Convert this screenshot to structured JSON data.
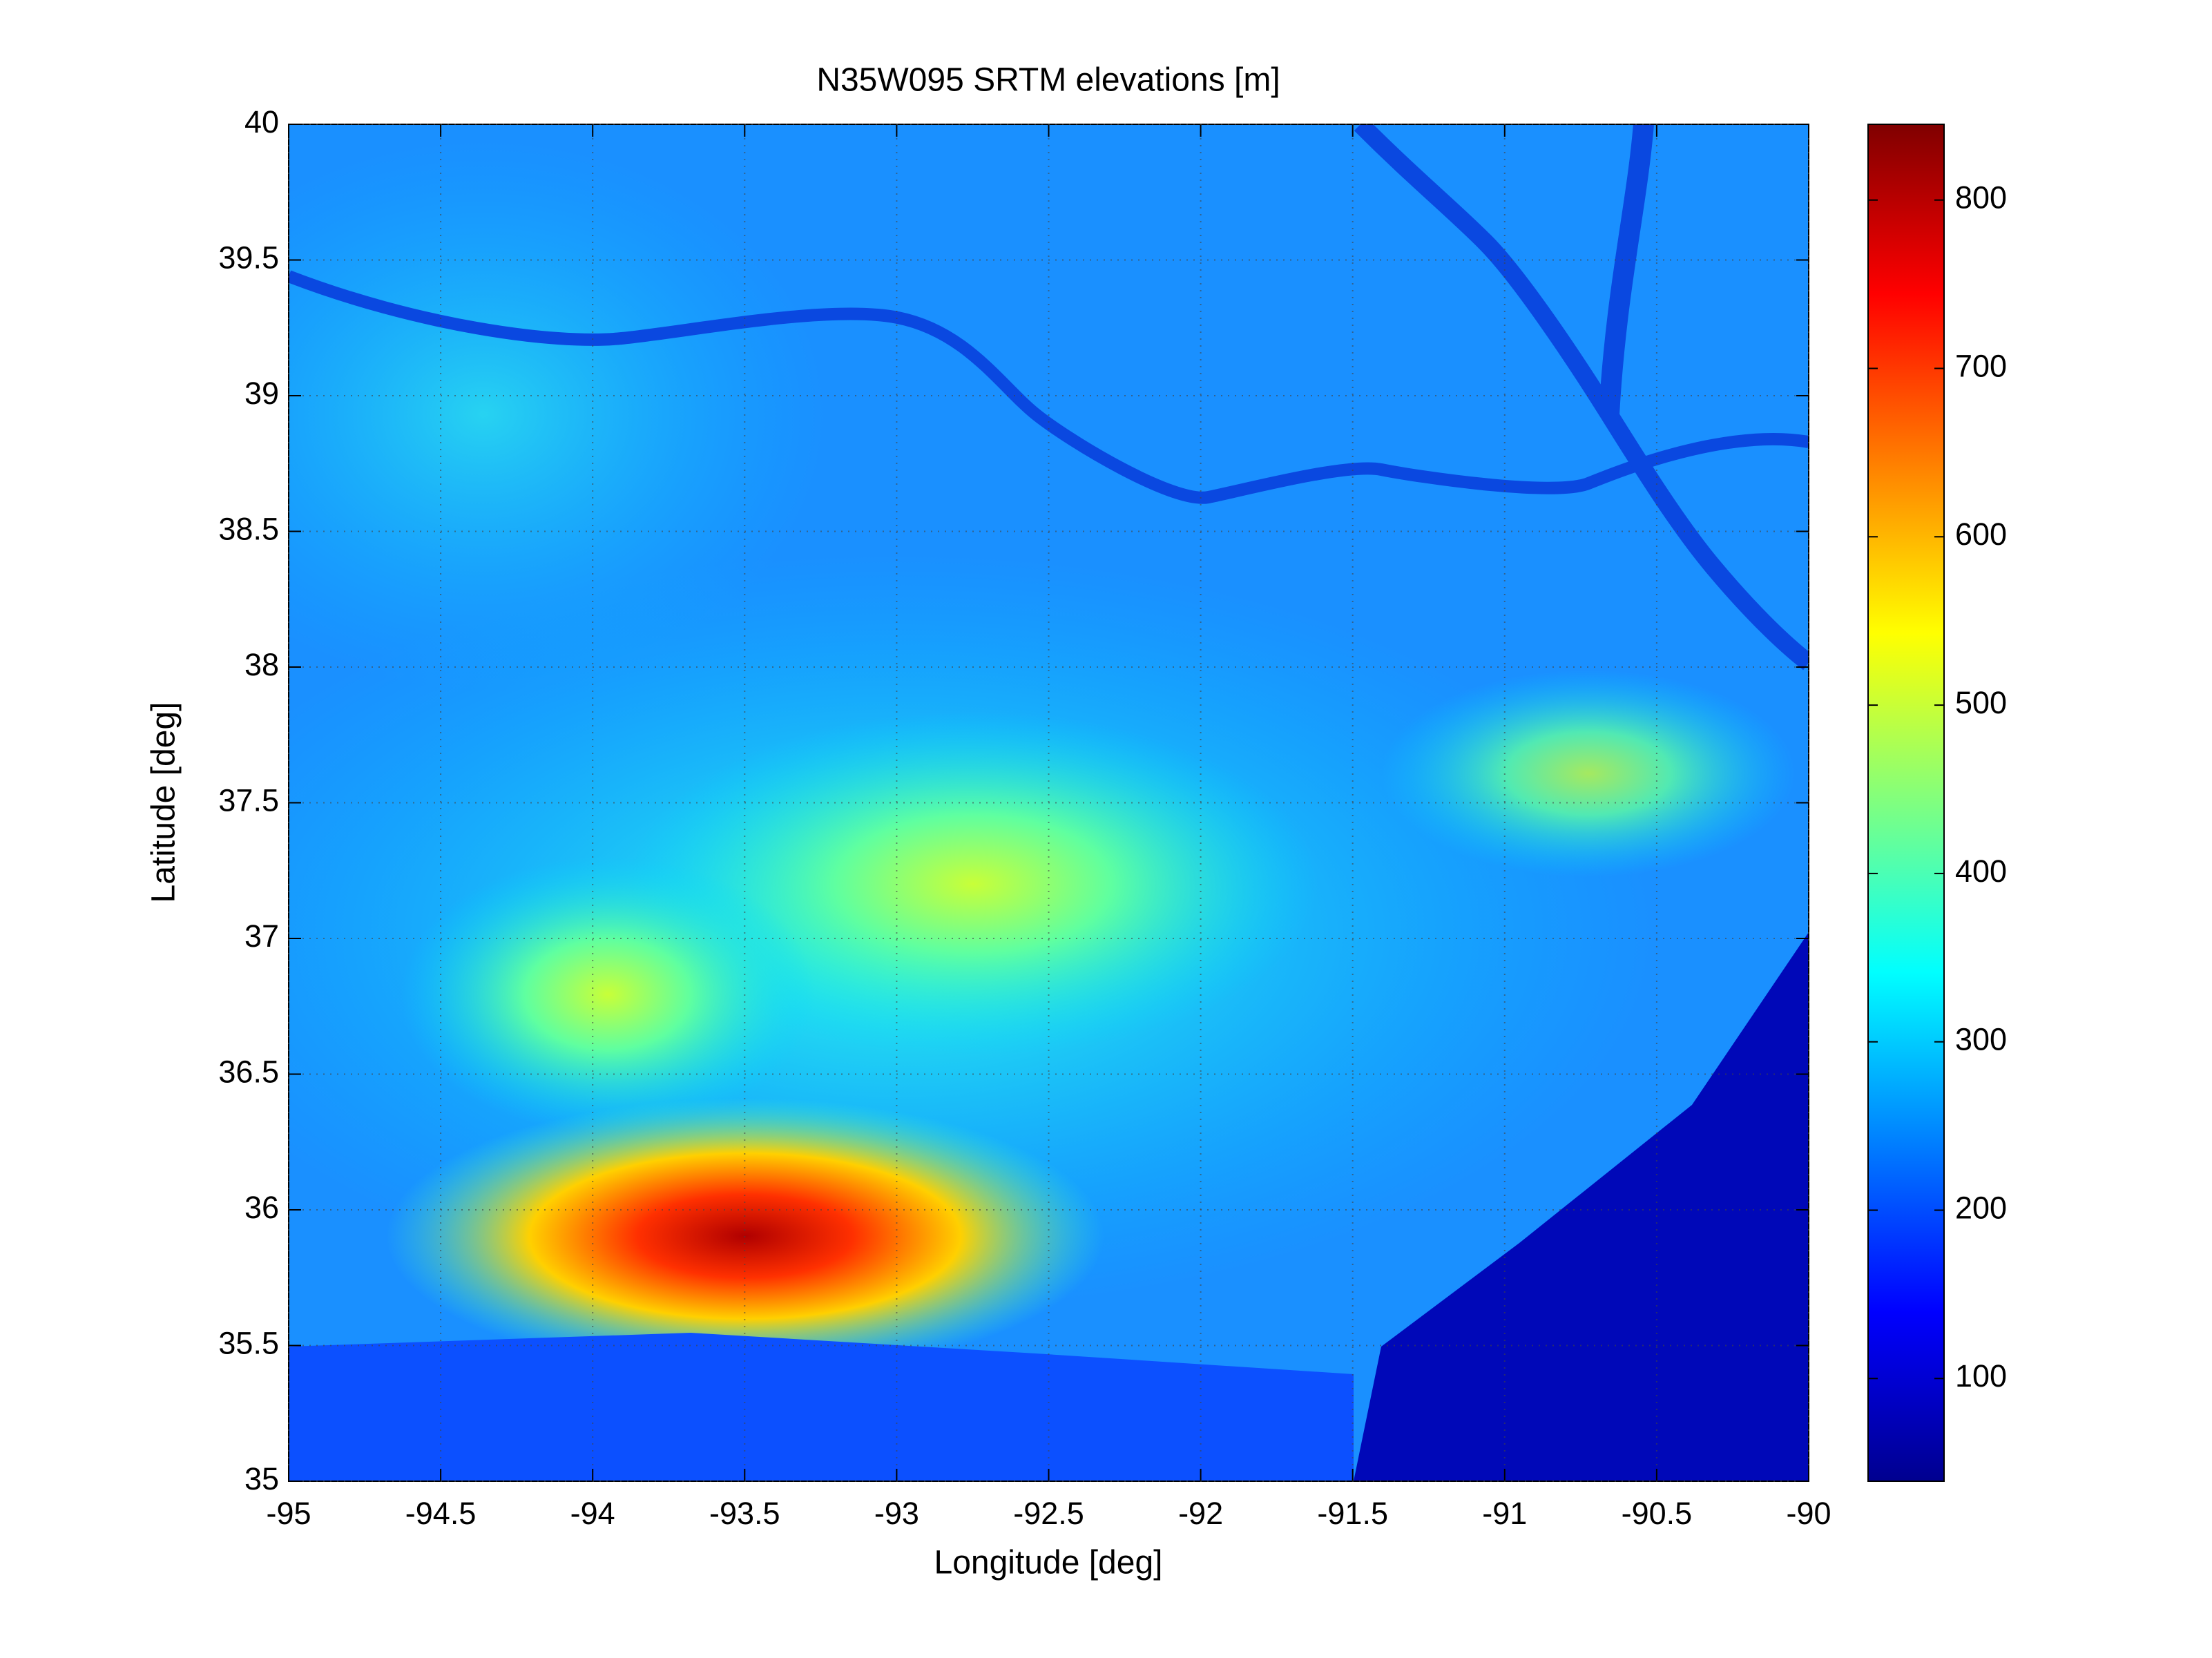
{
  "chart_data": {
    "type": "image",
    "title": "N35W095 SRTM elevations [m]",
    "xlabel": "Longitude [deg]",
    "ylabel": "Latitude [deg]",
    "xlim": [
      -95,
      -90
    ],
    "xticks": [
      -95,
      -94.5,
      -94,
      -93.5,
      -93,
      -92.5,
      -92,
      -91.5,
      -91,
      -90.5,
      -90
    ],
    "ylim": [
      35,
      40
    ],
    "yticks": [
      35,
      35.5,
      36,
      36.5,
      37,
      37.5,
      38,
      38.5,
      39,
      39.5,
      40
    ],
    "grid": true,
    "colormap": "jet",
    "clim": [
      39,
      845
    ],
    "cticks": [
      100,
      200,
      300,
      400,
      500,
      600,
      700,
      800
    ]
  }
}
